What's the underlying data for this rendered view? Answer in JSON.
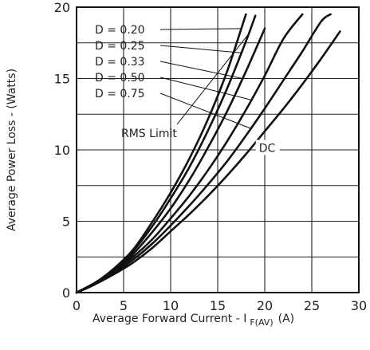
{
  "chart_data": {
    "type": "line",
    "xlabel": "Average Forward Current - I",
    "xlabel_sub": "F(AV)",
    "xlabel_unit": "(A)",
    "ylabel": "Average Power Loss - (Watts)",
    "xlim": [
      0,
      30
    ],
    "ylim": [
      0,
      20
    ],
    "xticks": [
      "0",
      "5",
      "10",
      "15",
      "20",
      "25",
      "30"
    ],
    "yticks": [
      "0",
      "5",
      "10",
      "15",
      "20"
    ],
    "grid": true,
    "series": [
      {
        "name": "D = 0.20",
        "x": [
          0,
          2,
          4,
          6,
          8,
          10,
          12,
          14,
          16,
          18
        ],
        "y": [
          0,
          0.7,
          1.7,
          3.0,
          4.9,
          7.0,
          9.4,
          12.2,
          15.5,
          19.5
        ]
      },
      {
        "name": "D = 0.25",
        "x": [
          0,
          2,
          4,
          6,
          8,
          10,
          12,
          14,
          16,
          18,
          19
        ],
        "y": [
          0,
          0.7,
          1.6,
          2.9,
          4.6,
          6.6,
          8.8,
          11.4,
          14.3,
          17.6,
          19.4
        ]
      },
      {
        "name": "D = 0.33",
        "x": [
          0,
          2,
          4,
          6,
          8,
          10,
          12,
          14,
          16,
          18,
          20
        ],
        "y": [
          0,
          0.7,
          1.5,
          2.7,
          4.2,
          5.9,
          7.9,
          10.2,
          12.7,
          15.5,
          18.5
        ]
      },
      {
        "name": "D = 0.50",
        "x": [
          0,
          2,
          4,
          6,
          8,
          10,
          12,
          14,
          16,
          18,
          20,
          22,
          24
        ],
        "y": [
          0,
          0.6,
          1.5,
          2.5,
          3.7,
          5.2,
          6.8,
          8.6,
          10.6,
          12.8,
          15.2,
          17.8,
          19.5
        ]
      },
      {
        "name": "D = 0.75",
        "x": [
          0,
          2,
          4,
          6,
          8,
          10,
          12,
          14,
          16,
          18,
          20,
          22,
          24,
          26,
          27
        ],
        "y": [
          0,
          0.6,
          1.4,
          2.3,
          3.4,
          4.7,
          6.1,
          7.6,
          9.2,
          11.0,
          12.9,
          14.9,
          16.9,
          19.0,
          19.5
        ]
      },
      {
        "name": "DC",
        "x": [
          0,
          2,
          4,
          6,
          8,
          10,
          12,
          14,
          16,
          18,
          20,
          22,
          24,
          26,
          28
        ],
        "y": [
          0,
          0.6,
          1.3,
          2.1,
          3.1,
          4.3,
          5.5,
          6.8,
          8.2,
          9.7,
          11.3,
          12.9,
          14.6,
          16.4,
          18.3
        ]
      }
    ],
    "annotations": [
      {
        "text": "D = 0.20",
        "target_series": 0,
        "at_y": 18.5
      },
      {
        "text": "D = 0.25",
        "target_series": 1,
        "at_y": 16.8
      },
      {
        "text": "D = 0.33",
        "target_series": 2,
        "at_y": 15.0
      },
      {
        "text": "D = 0.50",
        "target_series": 3,
        "at_y": 13.5
      },
      {
        "text": "D = 0.75",
        "target_series": 4,
        "at_y": 11.5
      },
      {
        "text": "RMS Limit",
        "point": [
          18.5,
          18.3
        ]
      },
      {
        "text": "DC",
        "target_series": 5
      }
    ]
  }
}
